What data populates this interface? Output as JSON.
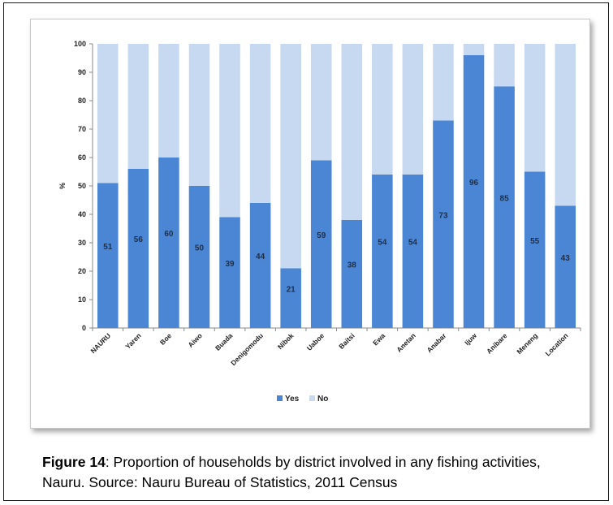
{
  "chart_data": {
    "type": "bar",
    "stacked": true,
    "categories": [
      "NAURU",
      "Yaren",
      "Boe",
      "Aiwo",
      "Buada",
      "Denigomodu",
      "Nibok",
      "Uaboe",
      "Baitsi",
      "Ewa",
      "Anetan",
      "Anabar",
      "Ijuw",
      "Anibare",
      "Meneng",
      "Location"
    ],
    "series": [
      {
        "name": "Yes",
        "color": "#4a86d4",
        "values": [
          51,
          56,
          60,
          50,
          39,
          44,
          21,
          59,
          38,
          54,
          54,
          73,
          96,
          85,
          55,
          43
        ]
      },
      {
        "name": "No",
        "color": "#c7d9f1",
        "values": [
          49,
          44,
          40,
          50,
          61,
          56,
          79,
          41,
          62,
          46,
          46,
          27,
          4,
          15,
          45,
          57
        ]
      }
    ],
    "data_labels": [
      "51",
      "56",
      "60",
      "50",
      "39",
      "44",
      "21",
      "59",
      "38",
      "54",
      "54",
      "73",
      "96",
      "85",
      "55",
      "43"
    ],
    "y_ticks": [
      "0",
      "10",
      "20",
      "30",
      "40",
      "50",
      "60",
      "70",
      "80",
      "90",
      "100"
    ],
    "ylim": [
      0,
      100
    ],
    "ylabel": "%",
    "xlabel": "",
    "title": "",
    "legend": {
      "position": "bottom",
      "items": [
        "Yes",
        "No"
      ]
    },
    "grid": false
  },
  "caption": {
    "label": "Figure 14",
    "text": ": Proportion of households by district involved in any fishing activities, Nauru. Source: Nauru Bureau of Statistics, 2011 Census"
  }
}
